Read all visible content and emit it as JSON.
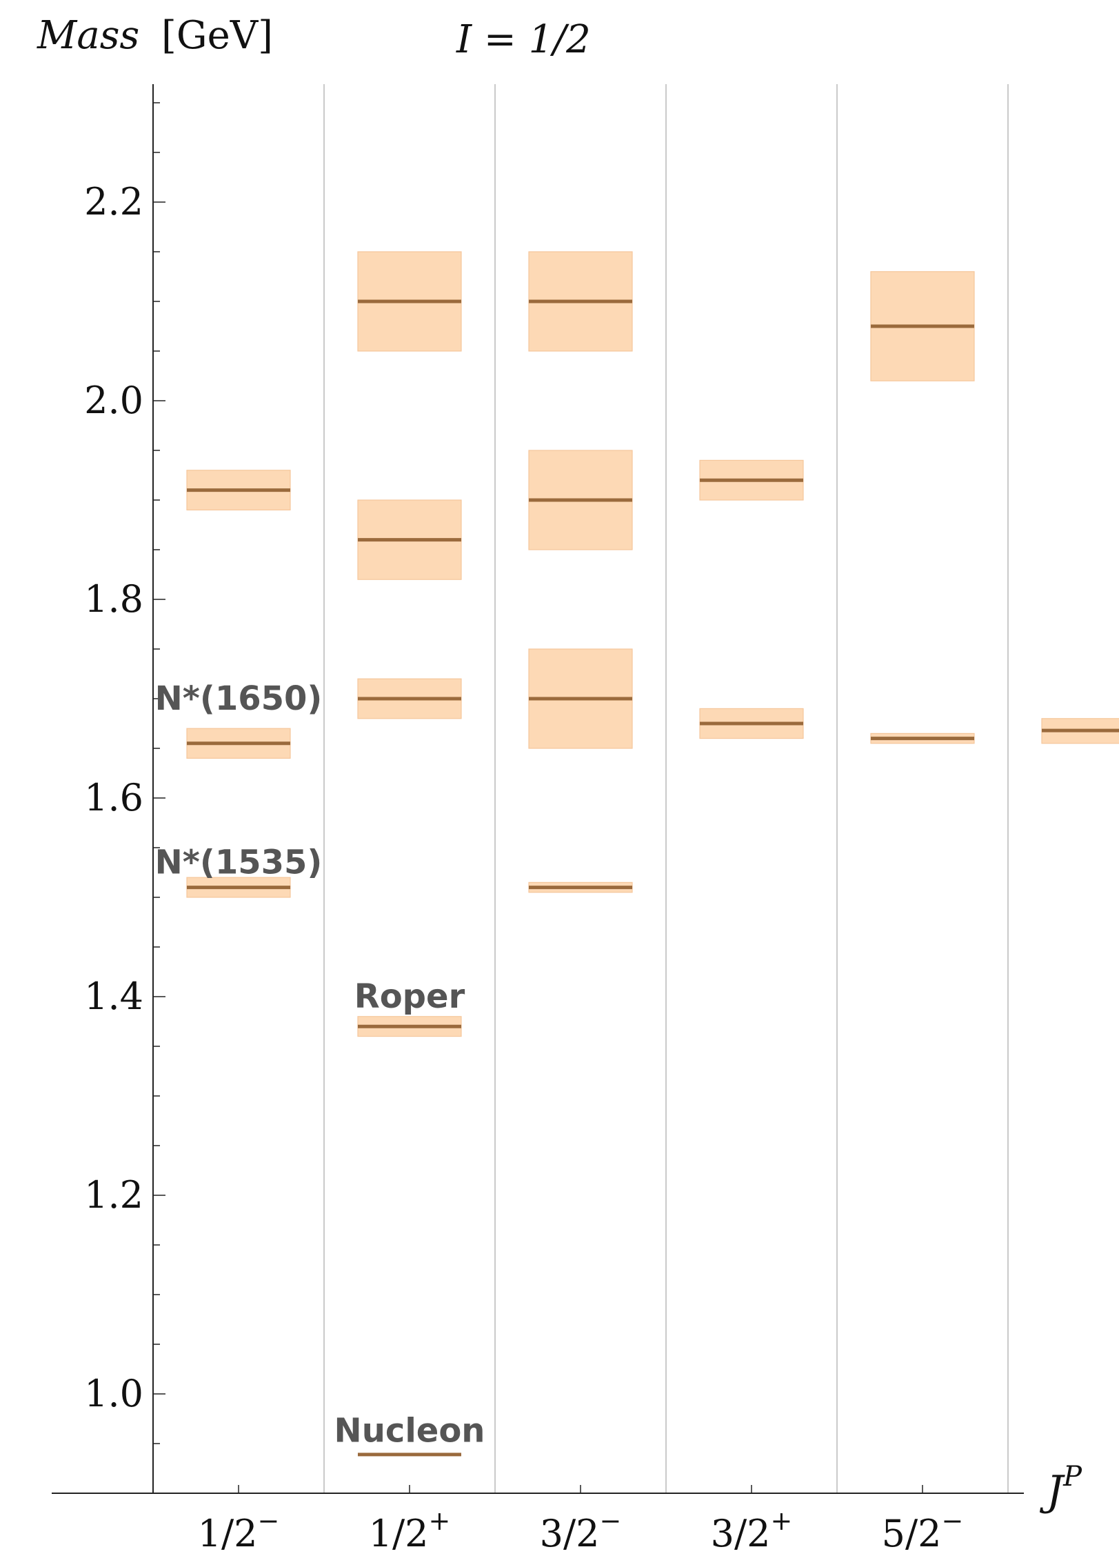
{
  "chart_data": {
    "type": "level-spectrum",
    "title": "I = 1/2",
    "ylabel": "Mass [GeV]",
    "ylabel_parts": [
      "Mass",
      "[GeV]"
    ],
    "xlabel": "J",
    "xlabel_superscript": "P",
    "ylim": [
      0.9,
      2.32
    ],
    "yticks": [
      1.0,
      1.2,
      1.4,
      1.6,
      1.8,
      2.0,
      2.2
    ],
    "ytick_labels": [
      "1.0",
      "1.2",
      "1.4",
      "1.6",
      "1.8",
      "2.0",
      "2.2"
    ],
    "minor_tick_step": 0.05,
    "categories": [
      {
        "fraction": "1/2",
        "parity": "−"
      },
      {
        "fraction": "1/2",
        "parity": "+"
      },
      {
        "fraction": "3/2",
        "parity": "−"
      },
      {
        "fraction": "3/2",
        "parity": "+"
      },
      {
        "fraction": "5/2",
        "parity": "−"
      }
    ],
    "levels": [
      {
        "column": 0,
        "mass": 1.51,
        "low": 1.5,
        "high": 1.52
      },
      {
        "column": 0,
        "mass": 1.655,
        "low": 1.64,
        "high": 1.67
      },
      {
        "column": 0,
        "mass": 1.91,
        "low": 1.89,
        "high": 1.93
      },
      {
        "column": 1,
        "mass": 0.939,
        "low": 0.939,
        "high": 0.939
      },
      {
        "column": 1,
        "mass": 1.37,
        "low": 1.36,
        "high": 1.38
      },
      {
        "column": 1,
        "mass": 1.7,
        "low": 1.68,
        "high": 1.72
      },
      {
        "column": 1,
        "mass": 1.86,
        "low": 1.82,
        "high": 1.9
      },
      {
        "column": 1,
        "mass": 2.1,
        "low": 2.05,
        "high": 2.15
      },
      {
        "column": 2,
        "mass": 1.51,
        "low": 1.505,
        "high": 1.515
      },
      {
        "column": 2,
        "mass": 1.7,
        "low": 1.65,
        "high": 1.75
      },
      {
        "column": 2,
        "mass": 1.9,
        "low": 1.85,
        "high": 1.95
      },
      {
        "column": 2,
        "mass": 2.1,
        "low": 2.05,
        "high": 2.15
      },
      {
        "column": 3,
        "mass": 1.675,
        "low": 1.66,
        "high": 1.69
      },
      {
        "column": 3,
        "mass": 1.92,
        "low": 1.9,
        "high": 1.94
      },
      {
        "column": 4,
        "mass": 1.66,
        "low": 1.655,
        "high": 1.665
      },
      {
        "column": 4,
        "mass": 2.075,
        "low": 2.02,
        "high": 2.13
      },
      {
        "column": 5,
        "mass": 1.668,
        "low": 1.655,
        "high": 1.68
      }
    ],
    "annotations": [
      {
        "text": "N*(1650)",
        "column": 0,
        "mass": 1.7
      },
      {
        "text": "N*(1535)",
        "column": 0,
        "mass": 1.535
      },
      {
        "text": "Roper",
        "column": 1,
        "mass": 1.4
      },
      {
        "text": "Nucleon",
        "column": 1,
        "mass": 0.963
      }
    ],
    "colors": {
      "band": "#fdd9b5",
      "band_edge": "#f5c69b",
      "level_line": "#9a6a3c",
      "grid": "#b8b8b8",
      "axis": "#222222",
      "annotation": "#555555"
    }
  }
}
